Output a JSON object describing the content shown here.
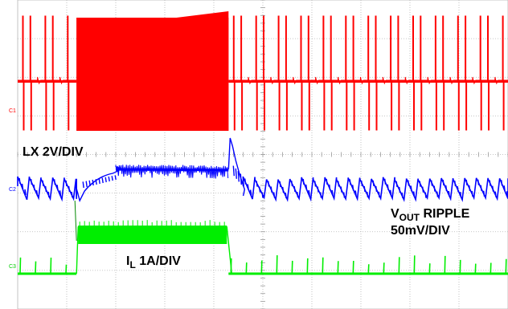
{
  "chart_data": {
    "type": "line",
    "grid": true,
    "grid_divisions": {
      "x": 10,
      "y": 8
    },
    "series": [
      {
        "name": "LX 2V/DIV",
        "channel": "C1",
        "color": "#ff0000",
        "mode": "switching-node",
        "segments": [
          {
            "state": "pulse-skipping",
            "x": [
              0.0,
              1.2
            ]
          },
          {
            "state": "continuous-switching",
            "x": [
              1.2,
              4.3
            ]
          },
          {
            "state": "pulse-skipping",
            "x": [
              4.3,
              10.0
            ]
          }
        ]
      },
      {
        "name": "VOUT RIPPLE 50mV/DIV",
        "channel": "C2",
        "color": "#0000ff",
        "mode": "ripple",
        "segments": [
          {
            "state": "sawtooth-ripple",
            "x": [
              0.0,
              1.2
            ]
          },
          {
            "state": "undershoot-recovery",
            "x": [
              1.2,
              2.0
            ]
          },
          {
            "state": "low-ripple",
            "x": [
              2.0,
              4.3
            ]
          },
          {
            "state": "overshoot",
            "x": [
              4.3,
              4.6
            ]
          },
          {
            "state": "sawtooth-ripple",
            "x": [
              4.6,
              10.0
            ]
          }
        ]
      },
      {
        "name": "IL 1A/DIV",
        "channel": "C3",
        "color": "#00ee00",
        "mode": "inductor-current",
        "segments": [
          {
            "state": "light-load",
            "x": [
              0.0,
              1.2
            ]
          },
          {
            "state": "heavy-load",
            "x": [
              1.2,
              4.3
            ]
          },
          {
            "state": "light-load",
            "x": [
              4.3,
              10.0
            ]
          }
        ]
      }
    ]
  },
  "labels": {
    "lx": "LX 2V/DIV",
    "vout_v": "V",
    "vout_sub": "OUT",
    "vout_ripple": " RIPPLE",
    "vout_scale": "50mV/DIV",
    "il_i": "I",
    "il_sub": "L",
    "il_scale": " 1A/DIV",
    "c1": "C1",
    "c2": "C2",
    "c3": "C3"
  }
}
